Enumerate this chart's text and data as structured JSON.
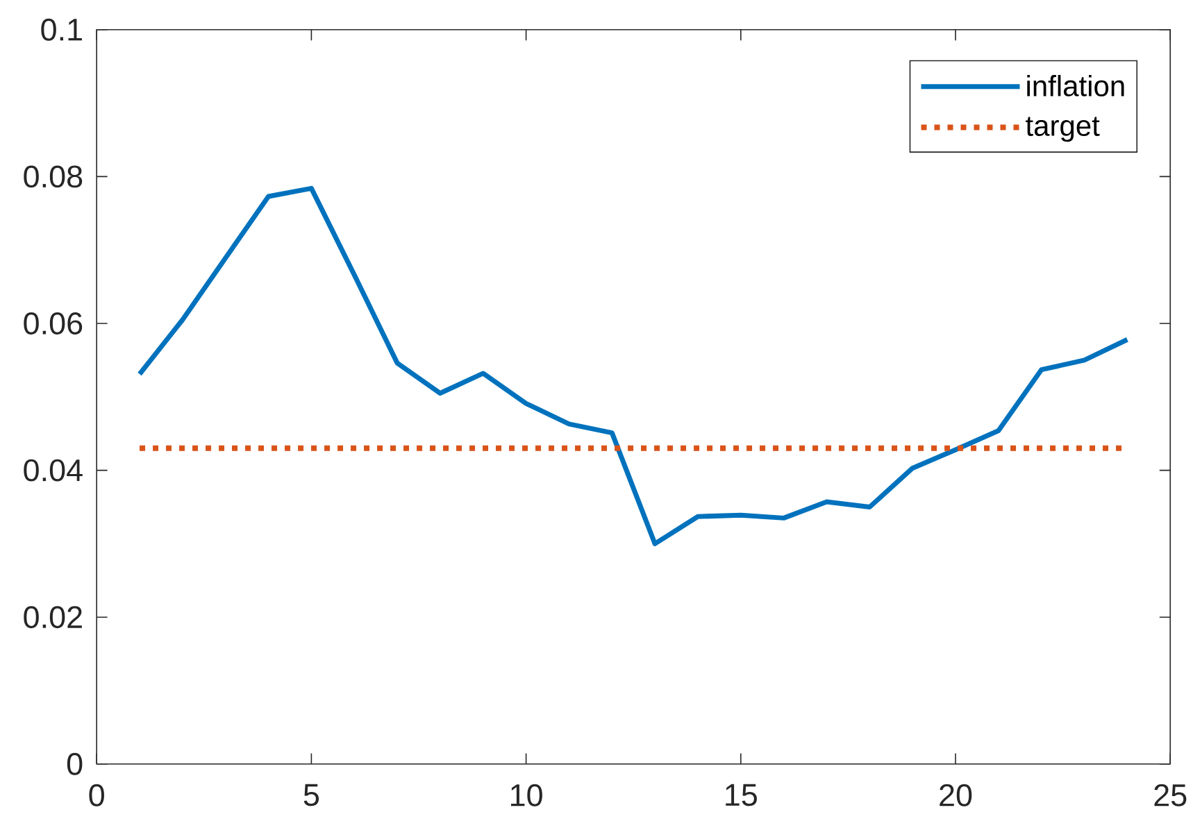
{
  "chart_data": {
    "type": "line",
    "x": [
      1,
      2,
      3,
      4,
      5,
      6,
      7,
      8,
      9,
      10,
      11,
      12,
      13,
      14,
      15,
      16,
      17,
      18,
      19,
      20,
      21,
      22,
      23,
      24
    ],
    "xlim": [
      0,
      25
    ],
    "xticks": [
      0,
      5,
      10,
      15,
      20,
      25
    ],
    "ylim": [
      0,
      0.1
    ],
    "yticks": [
      0,
      0.02,
      0.04,
      0.06,
      0.08,
      0.1
    ],
    "grid": false,
    "legend": "top right",
    "marker": "none",
    "series": [
      {
        "name": "inflation",
        "color": "#0072bd",
        "line_style": "solid",
        "values": [
          0.0531,
          0.0605,
          0.0689,
          0.0773,
          0.0784,
          0.0666,
          0.0546,
          0.0505,
          0.0532,
          0.0491,
          0.0463,
          0.0451,
          0.03,
          0.0337,
          0.0339,
          0.0335,
          0.0357,
          0.035,
          0.0403,
          0.0428,
          0.0454,
          0.0537,
          0.055,
          0.0578
        ]
      },
      {
        "name": "target",
        "color": "#d95319",
        "line_style": "dotted",
        "x": [
          1,
          24
        ],
        "values": [
          0.043,
          0.043
        ]
      }
    ]
  }
}
